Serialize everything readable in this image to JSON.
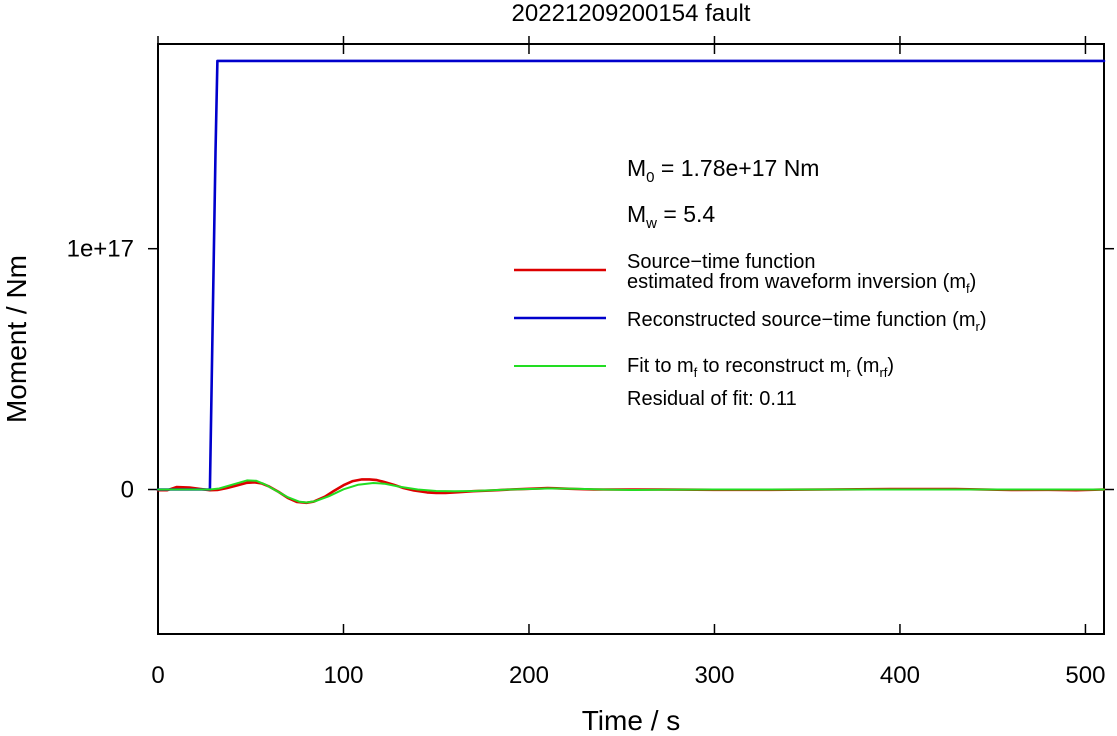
{
  "chart_data": {
    "type": "line",
    "title": "20221209200154 fault",
    "xlabel": "Time / s",
    "ylabel": "Moment / Nm",
    "xlim": [
      0,
      510
    ],
    "ylim": [
      -6e+16,
      1.85e+17
    ],
    "x_ticks": [
      {
        "value": 0,
        "label": "0"
      },
      {
        "value": 100,
        "label": "100"
      },
      {
        "value": 200,
        "label": "200"
      },
      {
        "value": 300,
        "label": "300"
      },
      {
        "value": 400,
        "label": "400"
      },
      {
        "value": 500,
        "label": "500"
      }
    ],
    "y_ticks": [
      {
        "value": 0,
        "label": "0"
      },
      {
        "value": 1e+17,
        "label": "1e+17"
      }
    ],
    "grid": false,
    "legend_placement": "right",
    "annotations": {
      "m0_label": "M",
      "m0_sub": "0",
      "m0_value": " = 1.78e+17 Nm",
      "mw_label": "M",
      "mw_sub": "w",
      "mw_value": " = 5.4",
      "residual": "Residual of fit: 0.11"
    },
    "legend": {
      "red_line1": "Source−time function",
      "red_line2": "estimated from waveform inversion (m",
      "red_sub": "f",
      "red_end": ")",
      "blue_text": "Reconstructed source−time function (m",
      "blue_sub": "r",
      "blue_end": ")",
      "green_a": "Fit to m",
      "green_sub1": "f",
      "green_b": " to reconstruct m",
      "green_sub2": "r",
      "green_c": " (m",
      "green_sub3": "rf",
      "green_d": ")"
    },
    "series": [
      {
        "color": "#dd0000",
        "x": [
          0,
          5,
          10,
          17,
          22,
          28,
          32,
          37,
          42,
          48,
          52,
          56,
          60,
          65,
          70,
          75,
          80,
          84,
          90,
          95,
          100,
          105,
          110,
          114,
          118,
          122,
          127,
          132,
          138,
          145,
          150,
          155,
          162,
          170,
          180,
          190,
          200,
          210,
          215,
          225,
          235,
          250,
          270,
          300,
          330,
          360,
          400,
          430,
          460,
          480,
          495,
          510
        ],
        "y": [
          -300000000000000.0,
          -300000000000000.0,
          1000000000000000.0,
          800000000000000.0,
          300000000000000.0,
          -300000000000000.0,
          -200000000000000.0,
          600000000000000.0,
          1600000000000000.0,
          2800000000000000.0,
          3000000000000000.0,
          2500000000000000.0,
          1200000000000000.0,
          -1000000000000000.0,
          -3500000000000000.0,
          -5200000000000000.0,
          -5500000000000000.0,
          -5000000000000000.0,
          -3000000000000000.0,
          -500000000000000.0,
          1800000000000000.0,
          3500000000000000.0,
          4200000000000000.0,
          4200000000000000.0,
          3900000000000000.0,
          3100000000000000.0,
          2000000000000000.0,
          700000000000000.0,
          -400000000000000.0,
          -1200000000000000.0,
          -1400000000000000.0,
          -1400000000000000.0,
          -1100000000000000.0,
          -700000000000000.0,
          -400000000000000.0,
          0.0,
          300000000000000.0,
          600000000000000.0,
          500000000000000.0,
          200000000000000.0,
          0.0,
          0.0,
          0.0,
          -100000000000000.0,
          -100000000000000.0,
          0.0,
          200000000000000.0,
          200000000000000.0,
          -200000000000000.0,
          -100000000000000.0,
          -300000000000000.0,
          0.0
        ]
      },
      {
        "color": "#0000cc",
        "x": [
          0,
          28,
          31,
          32,
          510
        ],
        "y": [
          0.0,
          0.0,
          1.4e+17,
          1.78e+17,
          1.78e+17
        ]
      },
      {
        "color": "#22dd22",
        "x": [
          0,
          20,
          28,
          33,
          40,
          48,
          53,
          58,
          64,
          70,
          76,
          80,
          85,
          92,
          100,
          108,
          116,
          122,
          130,
          140,
          150,
          160,
          170,
          180,
          190,
          200,
          210,
          215,
          225,
          240,
          255,
          270,
          300,
          350,
          400,
          450,
          510
        ],
        "y": [
          0.0,
          0.0,
          0.0,
          400000000000000.0,
          2000000000000000.0,
          3800000000000000.0,
          3600000000000000.0,
          2000000000000000.0,
          -600000000000000.0,
          -3200000000000000.0,
          -5000000000000000.0,
          -5400000000000000.0,
          -4800000000000000.0,
          -2800000000000000.0,
          100000000000000.0,
          2000000000000000.0,
          2700000000000000.0,
          2400000000000000.0,
          1200000000000000.0,
          0.0,
          -600000000000000.0,
          -700000000000000.0,
          -600000000000000.0,
          -300000000000000.0,
          0.0,
          200000000000000.0,
          400000000000000.0,
          400000000000000.0,
          300000000000000.0,
          0.0,
          -200000000000000.0,
          -100000000000000.0,
          0.0,
          0.0,
          0.0,
          0.0,
          0.0
        ]
      }
    ]
  }
}
